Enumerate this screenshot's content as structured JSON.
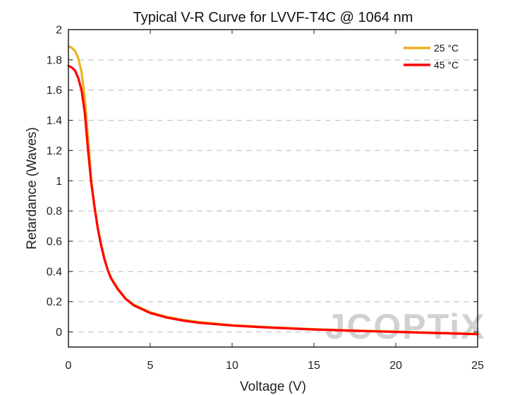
{
  "chart_data": {
    "type": "line",
    "title": "Typical V-R Curve for LVVF-T4C @ 1064 nm",
    "xlabel": "Voltage (V)",
    "ylabel": "Retardance (Waves)",
    "xlim": [
      0,
      25
    ],
    "ylim": [
      -0.1,
      2
    ],
    "x_ticks": [
      0,
      5,
      10,
      15,
      20,
      25
    ],
    "y_ticks": [
      0,
      0.2,
      0.4,
      0.6,
      0.8,
      1,
      1.2,
      1.4,
      1.6,
      1.8,
      2
    ],
    "x_tick_labels": [
      "0",
      "5",
      "10",
      "15",
      "20",
      "25"
    ],
    "y_tick_labels": [
      "0",
      "0.2",
      "0.4",
      "0.6",
      "0.8",
      "1",
      "1.2",
      "1.4",
      "1.6",
      "1.8",
      "2"
    ],
    "grid": "horizontal-dashed",
    "legend_position": "top-right",
    "series": [
      {
        "name": "25 °C",
        "color": "#EDB120",
        "x": [
          0,
          0.2,
          0.4,
          0.6,
          0.8,
          1.0,
          1.2,
          1.4,
          1.6,
          1.8,
          2.0,
          2.2,
          2.4,
          2.6,
          3.0,
          3.5,
          4.0,
          5.0,
          6.0,
          7.0,
          8.0,
          10.0,
          12.0,
          15.0,
          18.0,
          20.0,
          22.0,
          25.0
        ],
        "y": [
          1.89,
          1.88,
          1.86,
          1.81,
          1.72,
          1.55,
          1.28,
          1.0,
          0.83,
          0.69,
          0.58,
          0.49,
          0.41,
          0.36,
          0.29,
          0.22,
          0.18,
          0.13,
          0.1,
          0.08,
          0.065,
          0.045,
          0.033,
          0.018,
          0.008,
          0.002,
          -0.004,
          -0.013
        ]
      },
      {
        "name": "45 °C",
        "color": "#FF0000",
        "x": [
          0,
          0.2,
          0.4,
          0.6,
          0.8,
          1.0,
          1.2,
          1.4,
          1.6,
          1.8,
          2.0,
          2.2,
          2.4,
          2.6,
          3.0,
          3.5,
          4.0,
          5.0,
          6.0,
          7.0,
          8.0,
          10.0,
          12.0,
          15.0,
          18.0,
          20.0,
          22.0,
          25.0
        ],
        "y": [
          1.76,
          1.75,
          1.73,
          1.68,
          1.6,
          1.45,
          1.2,
          0.98,
          0.82,
          0.68,
          0.57,
          0.48,
          0.41,
          0.355,
          0.285,
          0.218,
          0.175,
          0.125,
          0.095,
          0.075,
          0.06,
          0.042,
          0.03,
          0.016,
          0.006,
          0.0,
          -0.006,
          -0.015
        ]
      }
    ]
  },
  "watermark": {
    "text": "JCOPTiX",
    "color": "#c9c9c9",
    "accent_color": "#f3c9a0"
  }
}
